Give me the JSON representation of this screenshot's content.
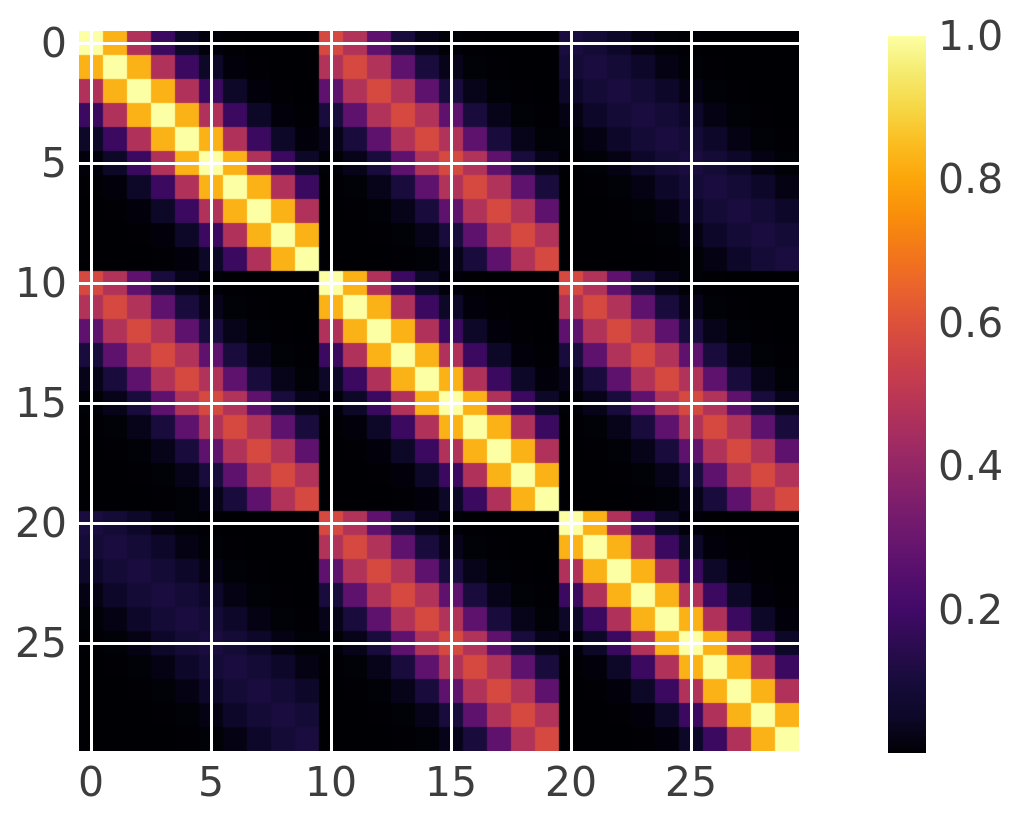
{
  "figure": {
    "background_color": "#ffffff",
    "grid_color": "#ffffff",
    "tick_label_color": "#3d3d3d"
  },
  "chart_data": {
    "type": "heatmap",
    "title": "",
    "xlabel": "",
    "ylabel": "",
    "colormap": "inferno",
    "vmin": 0,
    "vmax": 1,
    "n_rows": 30,
    "n_cols": 30,
    "grid": true,
    "x_tick_labels": [
      "0",
      "5",
      "10",
      "15",
      "20",
      "25"
    ],
    "x_tick_positions": [
      0,
      5,
      10,
      15,
      20,
      25
    ],
    "y_tick_labels": [
      "0",
      "5",
      "10",
      "15",
      "20",
      "25"
    ],
    "y_tick_positions": [
      0,
      5,
      10,
      15,
      20,
      25
    ],
    "colorbar_tick_labels": [
      "1.0",
      "0.8",
      "0.6",
      "0.4",
      "0.2"
    ],
    "colorbar_tick_values": [
      1.0,
      0.8,
      0.6,
      0.4,
      0.2
    ],
    "colormap_stops": [
      "#000004",
      "#0d0829",
      "#170c3b",
      "#2c0b50",
      "#420a68",
      "#560f6d",
      "#6a176e",
      "#7e1e6c",
      "#932667",
      "#a82e5f",
      "#bc3754",
      "#cd4247",
      "#dd513a",
      "#ea642b",
      "#f37819",
      "#f98e0a",
      "#fca50a",
      "#fbbd20",
      "#f6d746",
      "#f5eb70",
      "#fcffa4"
    ],
    "matrix": [
      [
        1,
        0.828,
        0.47,
        0.183,
        0.049,
        0.009,
        0.001,
        0,
        0,
        0,
        0.574,
        0.475,
        0.27,
        0.105,
        0.028,
        0.005,
        0.001,
        0,
        0,
        0,
        0.108,
        0.089,
        0.051,
        0.02,
        0.005,
        0.001,
        0,
        0,
        0,
        0
      ],
      [
        0.828,
        1,
        0.828,
        0.47,
        0.183,
        0.049,
        0.009,
        0.001,
        0,
        0,
        0.475,
        0.574,
        0.475,
        0.27,
        0.105,
        0.028,
        0.005,
        0.001,
        0,
        0,
        0.089,
        0.108,
        0.089,
        0.051,
        0.02,
        0.005,
        0.001,
        0,
        0,
        0
      ],
      [
        0.47,
        0.828,
        1,
        0.828,
        0.47,
        0.183,
        0.049,
        0.009,
        0.001,
        0,
        0.27,
        0.475,
        0.574,
        0.475,
        0.27,
        0.105,
        0.028,
        0.005,
        0.001,
        0,
        0.051,
        0.089,
        0.108,
        0.089,
        0.051,
        0.02,
        0.005,
        0.001,
        0,
        0
      ],
      [
        0.183,
        0.47,
        0.828,
        1,
        0.828,
        0.47,
        0.183,
        0.049,
        0.009,
        0.001,
        0.105,
        0.27,
        0.475,
        0.574,
        0.475,
        0.27,
        0.105,
        0.028,
        0.005,
        0.001,
        0.02,
        0.051,
        0.089,
        0.108,
        0.089,
        0.051,
        0.02,
        0.005,
        0.001,
        0
      ],
      [
        0.049,
        0.183,
        0.47,
        0.828,
        1,
        0.828,
        0.47,
        0.183,
        0.049,
        0.009,
        0.028,
        0.105,
        0.27,
        0.475,
        0.574,
        0.475,
        0.27,
        0.105,
        0.028,
        0.005,
        0.005,
        0.02,
        0.051,
        0.089,
        0.108,
        0.089,
        0.051,
        0.02,
        0.005,
        0.001
      ],
      [
        0.009,
        0.049,
        0.183,
        0.47,
        0.828,
        1,
        0.828,
        0.47,
        0.183,
        0.049,
        0.005,
        0.028,
        0.105,
        0.27,
        0.475,
        0.574,
        0.475,
        0.27,
        0.105,
        0.028,
        0.001,
        0.005,
        0.02,
        0.051,
        0.089,
        0.108,
        0.089,
        0.051,
        0.02,
        0.005
      ],
      [
        0.001,
        0.009,
        0.049,
        0.183,
        0.47,
        0.828,
        1,
        0.828,
        0.47,
        0.183,
        0.001,
        0.005,
        0.028,
        0.105,
        0.27,
        0.475,
        0.574,
        0.475,
        0.27,
        0.105,
        0,
        0.001,
        0.005,
        0.02,
        0.051,
        0.089,
        0.108,
        0.089,
        0.051,
        0.02
      ],
      [
        0,
        0.001,
        0.009,
        0.049,
        0.183,
        0.47,
        0.828,
        1,
        0.828,
        0.47,
        0,
        0.001,
        0.005,
        0.028,
        0.105,
        0.27,
        0.475,
        0.574,
        0.475,
        0.27,
        0,
        0,
        0.001,
        0.005,
        0.02,
        0.051,
        0.089,
        0.108,
        0.089,
        0.051
      ],
      [
        0,
        0,
        0.001,
        0.009,
        0.049,
        0.183,
        0.47,
        0.828,
        1,
        0.828,
        0,
        0,
        0.001,
        0.005,
        0.028,
        0.105,
        0.27,
        0.475,
        0.574,
        0.475,
        0,
        0,
        0,
        0.001,
        0.005,
        0.02,
        0.051,
        0.089,
        0.108,
        0.089
      ],
      [
        0,
        0,
        0,
        0.001,
        0.009,
        0.049,
        0.183,
        0.47,
        0.828,
        1,
        0,
        0,
        0,
        0.001,
        0.005,
        0.028,
        0.105,
        0.27,
        0.475,
        0.574,
        0,
        0,
        0,
        0,
        0.001,
        0.005,
        0.02,
        0.051,
        0.089,
        0.108
      ],
      [
        0.574,
        0.475,
        0.27,
        0.105,
        0.028,
        0.005,
        0.001,
        0,
        0,
        0,
        1,
        0.828,
        0.47,
        0.183,
        0.049,
        0.009,
        0.001,
        0,
        0,
        0,
        0.574,
        0.475,
        0.27,
        0.105,
        0.028,
        0.005,
        0.001,
        0,
        0,
        0
      ],
      [
        0.475,
        0.574,
        0.475,
        0.27,
        0.105,
        0.028,
        0.005,
        0.001,
        0,
        0,
        0.828,
        1,
        0.828,
        0.47,
        0.183,
        0.049,
        0.009,
        0.001,
        0,
        0,
        0.475,
        0.574,
        0.475,
        0.27,
        0.105,
        0.028,
        0.005,
        0.001,
        0,
        0
      ],
      [
        0.27,
        0.475,
        0.574,
        0.475,
        0.27,
        0.105,
        0.028,
        0.005,
        0.001,
        0,
        0.47,
        0.828,
        1,
        0.828,
        0.47,
        0.183,
        0.049,
        0.009,
        0.001,
        0,
        0.27,
        0.475,
        0.574,
        0.475,
        0.27,
        0.105,
        0.028,
        0.005,
        0.001,
        0
      ],
      [
        0.105,
        0.27,
        0.475,
        0.574,
        0.475,
        0.27,
        0.105,
        0.028,
        0.005,
        0.001,
        0.183,
        0.47,
        0.828,
        1,
        0.828,
        0.47,
        0.183,
        0.049,
        0.009,
        0.001,
        0.105,
        0.27,
        0.475,
        0.574,
        0.475,
        0.27,
        0.105,
        0.028,
        0.005,
        0.001
      ],
      [
        0.028,
        0.105,
        0.27,
        0.475,
        0.574,
        0.475,
        0.27,
        0.105,
        0.028,
        0.005,
        0.049,
        0.183,
        0.47,
        0.828,
        1,
        0.828,
        0.47,
        0.183,
        0.049,
        0.009,
        0.028,
        0.105,
        0.27,
        0.475,
        0.574,
        0.475,
        0.27,
        0.105,
        0.028,
        0.005
      ],
      [
        0.005,
        0.028,
        0.105,
        0.27,
        0.475,
        0.574,
        0.475,
        0.27,
        0.105,
        0.028,
        0.009,
        0.049,
        0.183,
        0.47,
        0.828,
        1,
        0.828,
        0.47,
        0.183,
        0.049,
        0.005,
        0.028,
        0.105,
        0.27,
        0.475,
        0.574,
        0.475,
        0.27,
        0.105,
        0.028
      ],
      [
        0.001,
        0.005,
        0.028,
        0.105,
        0.27,
        0.475,
        0.574,
        0.475,
        0.27,
        0.105,
        0.001,
        0.009,
        0.049,
        0.183,
        0.47,
        0.828,
        1,
        0.828,
        0.47,
        0.183,
        0.001,
        0.005,
        0.028,
        0.105,
        0.27,
        0.475,
        0.574,
        0.475,
        0.27,
        0.105
      ],
      [
        0,
        0.001,
        0.005,
        0.028,
        0.105,
        0.27,
        0.475,
        0.574,
        0.475,
        0.27,
        0,
        0.001,
        0.009,
        0.049,
        0.183,
        0.47,
        0.828,
        1,
        0.828,
        0.47,
        0,
        0.001,
        0.005,
        0.028,
        0.105,
        0.27,
        0.475,
        0.574,
        0.475,
        0.27
      ],
      [
        0,
        0,
        0.001,
        0.005,
        0.028,
        0.105,
        0.27,
        0.475,
        0.574,
        0.475,
        0,
        0,
        0.001,
        0.009,
        0.049,
        0.183,
        0.47,
        0.828,
        1,
        0.828,
        0,
        0,
        0.001,
        0.005,
        0.028,
        0.105,
        0.27,
        0.475,
        0.574,
        0.475
      ],
      [
        0,
        0,
        0,
        0.001,
        0.005,
        0.028,
        0.105,
        0.27,
        0.475,
        0.574,
        0,
        0,
        0,
        0.001,
        0.009,
        0.049,
        0.183,
        0.47,
        0.828,
        1,
        0,
        0,
        0,
        0.001,
        0.005,
        0.028,
        0.105,
        0.27,
        0.475,
        0.574
      ],
      [
        0.108,
        0.089,
        0.051,
        0.02,
        0.005,
        0.001,
        0,
        0,
        0,
        0,
        0.574,
        0.475,
        0.27,
        0.105,
        0.028,
        0.005,
        0.001,
        0,
        0,
        0,
        1,
        0.828,
        0.47,
        0.183,
        0.049,
        0.009,
        0.001,
        0,
        0,
        0
      ],
      [
        0.089,
        0.108,
        0.089,
        0.051,
        0.02,
        0.005,
        0.001,
        0,
        0,
        0,
        0.475,
        0.574,
        0.475,
        0.27,
        0.105,
        0.028,
        0.005,
        0.001,
        0,
        0,
        0.828,
        1,
        0.828,
        0.47,
        0.183,
        0.049,
        0.009,
        0.001,
        0,
        0
      ],
      [
        0.051,
        0.089,
        0.108,
        0.089,
        0.051,
        0.02,
        0.005,
        0.001,
        0,
        0,
        0.27,
        0.475,
        0.574,
        0.475,
        0.27,
        0.105,
        0.028,
        0.005,
        0.001,
        0,
        0.47,
        0.828,
        1,
        0.828,
        0.47,
        0.183,
        0.049,
        0.009,
        0.001,
        0
      ],
      [
        0.02,
        0.051,
        0.089,
        0.108,
        0.089,
        0.051,
        0.02,
        0.005,
        0.001,
        0,
        0.105,
        0.27,
        0.475,
        0.574,
        0.475,
        0.27,
        0.105,
        0.028,
        0.005,
        0.001,
        0.183,
        0.47,
        0.828,
        1,
        0.828,
        0.47,
        0.183,
        0.049,
        0.009,
        0.001
      ],
      [
        0.005,
        0.02,
        0.051,
        0.089,
        0.108,
        0.089,
        0.051,
        0.02,
        0.005,
        0.001,
        0.028,
        0.105,
        0.27,
        0.475,
        0.574,
        0.475,
        0.27,
        0.105,
        0.028,
        0.005,
        0.049,
        0.183,
        0.47,
        0.828,
        1,
        0.828,
        0.47,
        0.183,
        0.049,
        0.009
      ],
      [
        0.001,
        0.005,
        0.02,
        0.051,
        0.089,
        0.108,
        0.089,
        0.051,
        0.02,
        0.005,
        0.005,
        0.028,
        0.105,
        0.27,
        0.475,
        0.574,
        0.475,
        0.27,
        0.105,
        0.028,
        0.009,
        0.049,
        0.183,
        0.47,
        0.828,
        1,
        0.828,
        0.47,
        0.183,
        0.049
      ],
      [
        0,
        0.001,
        0.005,
        0.02,
        0.051,
        0.089,
        0.108,
        0.089,
        0.051,
        0.02,
        0.001,
        0.005,
        0.028,
        0.105,
        0.27,
        0.475,
        0.574,
        0.475,
        0.27,
        0.105,
        0.001,
        0.009,
        0.049,
        0.183,
        0.47,
        0.828,
        1,
        0.828,
        0.47,
        0.183
      ],
      [
        0,
        0,
        0.001,
        0.005,
        0.02,
        0.051,
        0.089,
        0.108,
        0.089,
        0.051,
        0,
        0.001,
        0.005,
        0.028,
        0.105,
        0.27,
        0.475,
        0.574,
        0.475,
        0.27,
        0,
        0.001,
        0.009,
        0.049,
        0.183,
        0.47,
        0.828,
        1,
        0.828,
        0.47
      ],
      [
        0,
        0,
        0,
        0.001,
        0.005,
        0.02,
        0.051,
        0.089,
        0.108,
        0.089,
        0,
        0,
        0.001,
        0.005,
        0.028,
        0.105,
        0.27,
        0.475,
        0.574,
        0.475,
        0,
        0,
        0.001,
        0.009,
        0.049,
        0.183,
        0.47,
        0.828,
        1,
        0.828
      ],
      [
        0,
        0,
        0,
        0,
        0.001,
        0.005,
        0.02,
        0.051,
        0.089,
        0.108,
        0,
        0,
        0,
        0.001,
        0.005,
        0.028,
        0.105,
        0.27,
        0.475,
        0.574,
        0,
        0,
        0,
        0.001,
        0.009,
        0.049,
        0.183,
        0.47,
        0.828,
        1
      ]
    ]
  }
}
